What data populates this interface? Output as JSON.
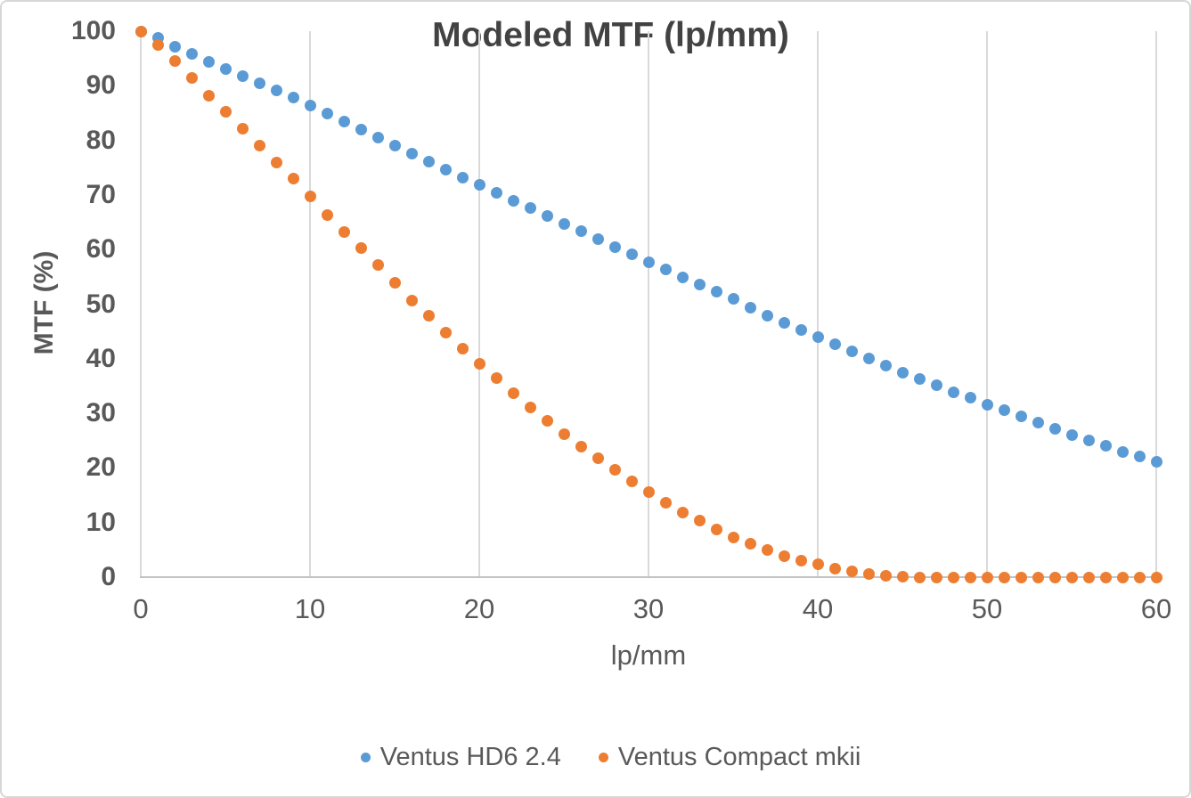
{
  "chart_data": {
    "type": "scatter",
    "title": "Modeled MTF (lp/mm)",
    "xlabel": "lp/mm",
    "ylabel": "MTF (%)",
    "xlim": [
      0,
      60
    ],
    "ylim": [
      0,
      100
    ],
    "x_ticks": [
      0,
      10,
      20,
      30,
      40,
      50,
      60
    ],
    "y_ticks": [
      0,
      10,
      20,
      30,
      40,
      50,
      60,
      70,
      80,
      90,
      100
    ],
    "grid": "vertical-gridlines-only",
    "legend_position": "bottom",
    "x": [
      0,
      1,
      2,
      3,
      4,
      5,
      6,
      7,
      8,
      9,
      10,
      11,
      12,
      13,
      14,
      15,
      16,
      17,
      18,
      19,
      20,
      21,
      22,
      23,
      24,
      25,
      26,
      27,
      28,
      29,
      30,
      31,
      32,
      33,
      34,
      35,
      36,
      37,
      38,
      39,
      40,
      41,
      42,
      43,
      44,
      45,
      46,
      47,
      48,
      49,
      50,
      51,
      52,
      53,
      54,
      55,
      56,
      57,
      58,
      59,
      60
    ],
    "series": [
      {
        "name": "Ventus HD6 2.4",
        "color": "#5B9BD5",
        "values": [
          100,
          98.7,
          97.2,
          95.8,
          94.4,
          93.1,
          91.8,
          90.4,
          89.1,
          87.8,
          86.3,
          84.9,
          83.4,
          82.0,
          80.5,
          79.0,
          77.6,
          76.1,
          74.6,
          73.2,
          71.8,
          70.4,
          69.0,
          67.6,
          66.1,
          64.7,
          63.3,
          61.9,
          60.5,
          59.1,
          57.7,
          56.3,
          54.9,
          53.6,
          52.3,
          50.9,
          49.3,
          47.9,
          46.6,
          45.3,
          43.9,
          42.6,
          41.3,
          40.1,
          38.8,
          37.5,
          36.3,
          35.1,
          33.9,
          32.8,
          31.6,
          30.6,
          29.5,
          28.3,
          27.2,
          26.1,
          25.1,
          24.0,
          23.0,
          22.1,
          21.1
        ]
      },
      {
        "name": "Ventus Compact mkii",
        "color": "#ED7D31",
        "values": [
          100,
          97.5,
          94.5,
          91.4,
          88.2,
          85.2,
          82.1,
          79.1,
          76.0,
          73.0,
          69.8,
          66.3,
          63.2,
          60.2,
          57.1,
          53.9,
          50.7,
          47.8,
          44.8,
          41.9,
          39.1,
          36.4,
          33.7,
          31.1,
          28.6,
          26.2,
          23.9,
          21.7,
          19.6,
          17.6,
          15.6,
          13.7,
          11.9,
          10.3,
          8.7,
          7.3,
          6.1,
          5.0,
          3.9,
          3.0,
          2.3,
          1.6,
          1.0,
          0.6,
          0.3,
          0.1,
          0,
          0,
          0,
          0,
          0,
          0,
          0,
          0,
          0,
          0,
          0,
          0,
          0,
          0,
          0
        ]
      }
    ]
  },
  "colors": {
    "title_text": "#424242",
    "axis_text": "#595959",
    "gridline": "#D9D9D9",
    "axis_line": "#C3C3C3",
    "background": "#FFFFFF",
    "chart_border": "#D7D7D7"
  }
}
